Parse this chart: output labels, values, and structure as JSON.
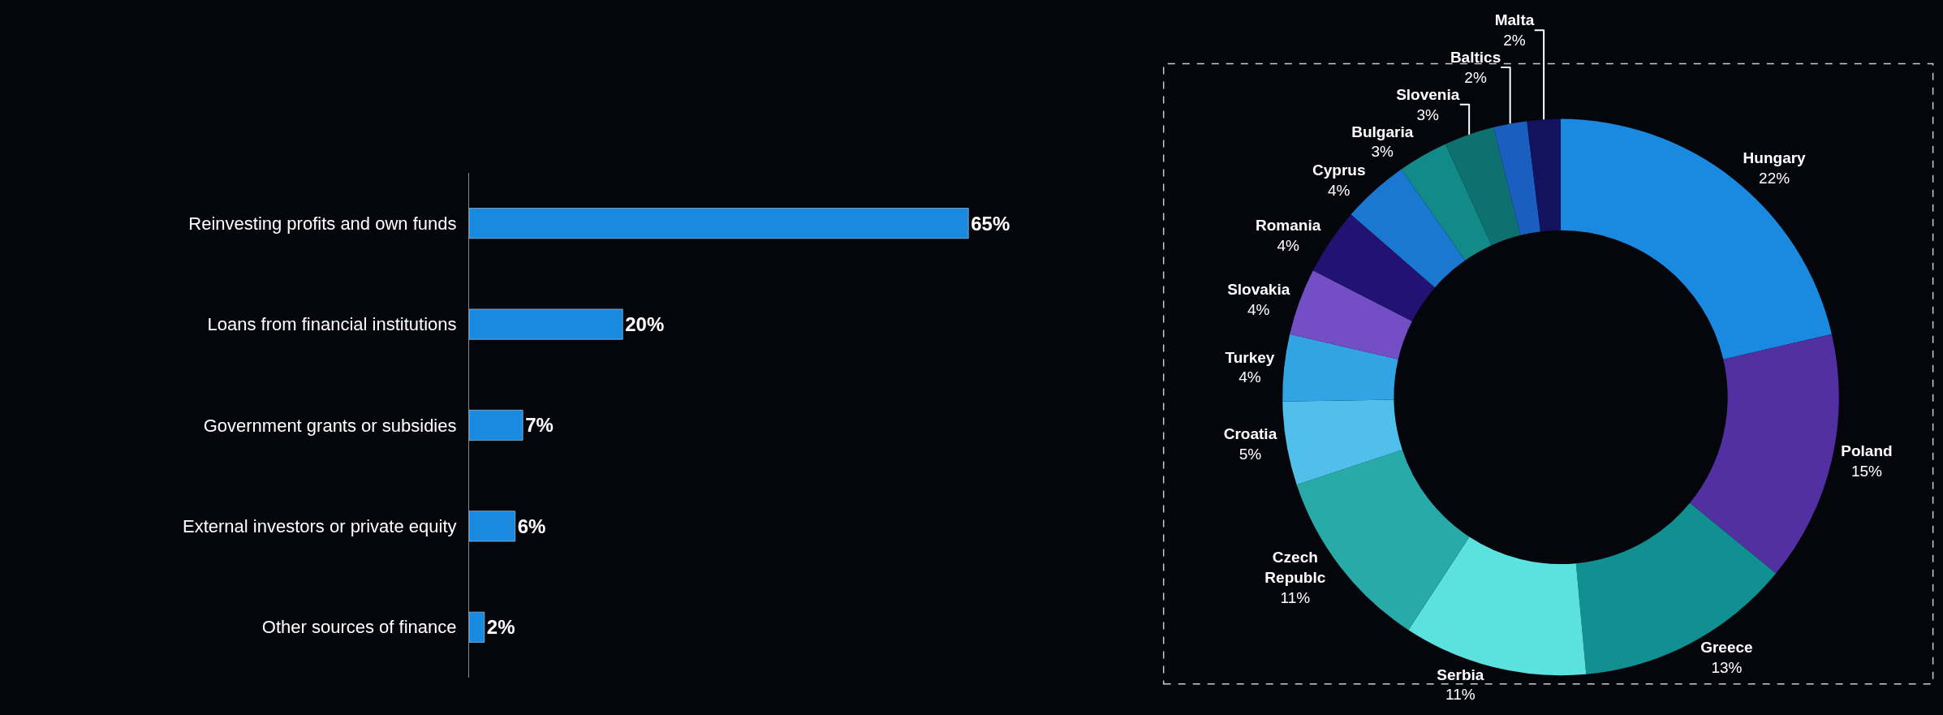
{
  "chart_data": [
    {
      "type": "bar",
      "orientation": "horizontal",
      "categories": [
        "Reinvesting profits and own funds",
        "Loans from financial institutions",
        "Government grants or subsidies",
        "External investors or private equity",
        "Other sources of finance"
      ],
      "values": [
        65,
        20,
        7,
        6,
        2
      ],
      "value_labels": [
        "65%",
        "20%",
        "7%",
        "6%",
        "2%"
      ],
      "color": "#1a8ae0",
      "tick_labels": "y"
    },
    {
      "type": "donut",
      "categories": [
        "Hungary",
        "Poland",
        "Greece",
        "Serbia",
        "Czech Republc",
        "Croatia",
        "Turkey",
        "Slovakia",
        "Romania",
        "Cyprus",
        "Bulgaria",
        "Slovenia",
        "Baltics",
        "Malta"
      ],
      "values": [
        22,
        15,
        13,
        11,
        11,
        5,
        4,
        4,
        4,
        4,
        3,
        3,
        2,
        2
      ],
      "value_labels": [
        "22%",
        "15%",
        "13%",
        "11%",
        "11%",
        "5%",
        "4%",
        "4%",
        "4%",
        "4%",
        "3%",
        "3%",
        "2%",
        "2%"
      ],
      "colors": [
        "#1a8ae0",
        "#5230a2",
        "#109090",
        "#5ce2de",
        "#28aaa8",
        "#50c0ea",
        "#32a4e4",
        "#744ec4",
        "#221272",
        "#1a78d0",
        "#118a88",
        "#0f7070",
        "#1a5ec0",
        "#12125e"
      ]
    }
  ]
}
